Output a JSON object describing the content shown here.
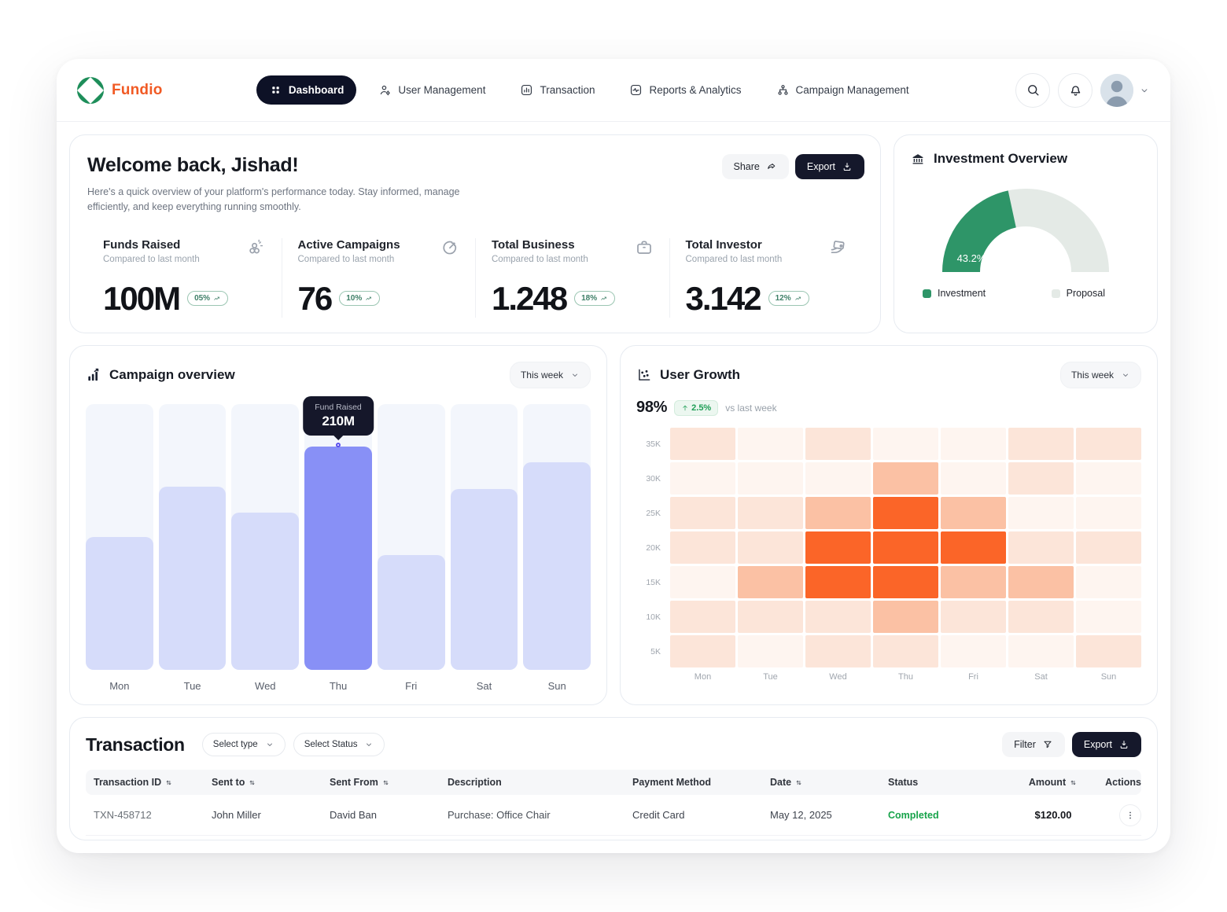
{
  "brand": {
    "name": "Fundio"
  },
  "nav": {
    "items": [
      {
        "label": "Dashboard",
        "icon": "grid",
        "active": true
      },
      {
        "label": "User Management",
        "icon": "user-gear",
        "active": false
      },
      {
        "label": "Transaction",
        "icon": "chart-square",
        "active": false
      },
      {
        "label": "Reports & Analytics",
        "icon": "activity-square",
        "active": false
      },
      {
        "label": "Campaign Management",
        "icon": "hierarchy",
        "active": false
      }
    ]
  },
  "welcome": {
    "title": "Welcome back, Jishad!",
    "subtitle": "Here's a quick overview of your platform's performance today. Stay informed, manage efficiently, and keep everything running smoothly.",
    "share_label": "Share",
    "export_label": "Export"
  },
  "stats": [
    {
      "title": "Funds Raised",
      "compare": "Compared to last month",
      "value": "100M",
      "badge": "05%",
      "icon": "coins"
    },
    {
      "title": "Active Campaigns",
      "compare": "Compared to last month",
      "value": "76",
      "badge": "10%",
      "icon": "gauge"
    },
    {
      "title": "Total Business",
      "compare": "Compared to last month",
      "value": "1.248",
      "badge": "18%",
      "icon": "briefcase"
    },
    {
      "title": "Total Investor",
      "compare": "Compared to last month",
      "value": "3.142",
      "badge": "12%",
      "icon": "hand-card"
    }
  ],
  "investment": {
    "title": "Investment Overview"
  },
  "campaign": {
    "title": "Campaign overview",
    "range_label": "This week"
  },
  "user_growth": {
    "title": "User Growth",
    "range_label": "This week",
    "headline": "98%",
    "delta": "2.5%",
    "caption": "vs last week"
  },
  "chart_data": [
    {
      "type": "bar",
      "title": "Campaign overview",
      "categories": [
        "Mon",
        "Tue",
        "Wed",
        "Thu",
        "Fri",
        "Sat",
        "Sun"
      ],
      "values": [
        125,
        172,
        148,
        210,
        108,
        170,
        195
      ],
      "unit": "M (funds raised)",
      "ylim": [
        0,
        250
      ],
      "highlight": {
        "index": 3,
        "label": "Fund Raised",
        "value": "210M"
      },
      "colors": {
        "bar": "#D6DCFA",
        "highlight": "#8890F6",
        "track": "#F3F6FC",
        "marker": "#5B50EE"
      }
    },
    {
      "type": "heatmap",
      "title": "User Growth",
      "x": [
        "Mon",
        "Tue",
        "Wed",
        "Thu",
        "Fri",
        "Sat",
        "Sun"
      ],
      "y": [
        "35K",
        "30K",
        "25K",
        "20K",
        "15K",
        "10K",
        "5K"
      ],
      "levels": [
        [
          1,
          0,
          1,
          0,
          0,
          1,
          1
        ],
        [
          0,
          0,
          0,
          2,
          0,
          1,
          0
        ],
        [
          1,
          1,
          2,
          3,
          2,
          0,
          0
        ],
        [
          1,
          1,
          3,
          3,
          3,
          1,
          1
        ],
        [
          0,
          2,
          3,
          3,
          2,
          2,
          0
        ],
        [
          1,
          1,
          1,
          2,
          1,
          1,
          0
        ],
        [
          1,
          0,
          1,
          1,
          0,
          0,
          1
        ]
      ],
      "palette": [
        "#FEF5F0",
        "#FCE5D9",
        "#FBC1A4",
        "#FB6528"
      ],
      "legend_note": "intensity level 0-3"
    },
    {
      "type": "pie",
      "title": "Investment Overview",
      "style": "half-donut-gauge",
      "label": "43.2%",
      "series": [
        {
          "name": "Investment",
          "value": 43.2,
          "color": "#2E9568"
        },
        {
          "name": "Proposal",
          "value": 56.8,
          "color": "#E4EAE6"
        }
      ]
    }
  ],
  "transaction": {
    "title": "Transaction",
    "type_filter": "Select type",
    "status_filter": "Select Status",
    "filter_label": "Filter",
    "export_label": "Export",
    "columns": [
      {
        "label": "Transaction ID",
        "sortable": true
      },
      {
        "label": "Sent to",
        "sortable": true
      },
      {
        "label": "Sent From",
        "sortable": true
      },
      {
        "label": "Description",
        "sortable": false
      },
      {
        "label": "Payment Method",
        "sortable": false
      },
      {
        "label": "Date",
        "sortable": true
      },
      {
        "label": "Status",
        "sortable": false
      },
      {
        "label": "Amount",
        "sortable": true
      },
      {
        "label": "Actions",
        "sortable": false
      }
    ],
    "rows": [
      {
        "id": "TXN-458712",
        "sent_to": "John Miller",
        "sent_from": "David Ban",
        "description": "Purchase: Office Chair",
        "payment": "Credit Card",
        "date": "May 12, 2025",
        "status": "Completed",
        "amount": "$120.00"
      }
    ]
  }
}
